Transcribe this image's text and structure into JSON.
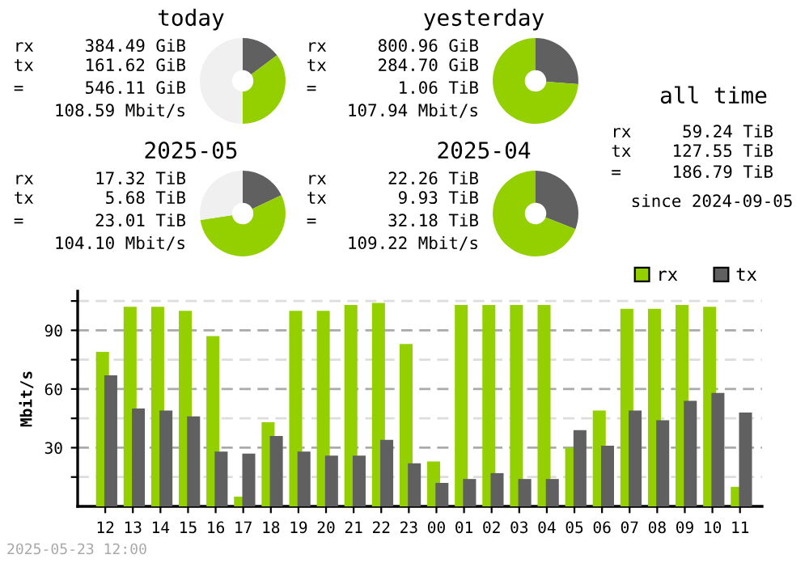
{
  "chart_data": [
    {
      "type": "donut",
      "title": "today",
      "categories": [
        null,
        null,
        null
      ],
      "values": [
        14.8,
        35.2,
        50.0
      ],
      "colors": [
        "#606060",
        "#94cf00",
        "#f0f0f0"
      ],
      "annotations": [
        "rx     384.49 GiB",
        "tx     161.62 GiB",
        "=      546.11 GiB",
        "108.59 Mbit/s"
      ]
    },
    {
      "type": "donut",
      "title": "yesterday",
      "categories": [
        null,
        null
      ],
      "values": [
        26.2,
        73.8
      ],
      "colors": [
        "#606060",
        "#94cf00"
      ],
      "annotations": [
        "rx     800.96 GiB",
        "tx     284.70 GiB",
        "=        1.06 TiB",
        "107.94 Mbit/s"
      ]
    },
    {
      "type": "donut",
      "title": "2025-05",
      "categories": [
        null,
        null,
        null
      ],
      "values": [
        17.9,
        54.7,
        27.4
      ],
      "colors": [
        "#606060",
        "#94cf00",
        "#f0f0f0"
      ],
      "annotations": [
        "rx      17.32 TiB",
        "tx       5.68 TiB",
        "=       23.01 TiB",
        "104.10 Mbit/s"
      ]
    },
    {
      "type": "donut",
      "title": "2025-04",
      "categories": [
        null,
        null
      ],
      "values": [
        30.9,
        69.1
      ],
      "colors": [
        "#606060",
        "#94cf00"
      ],
      "annotations": [
        "rx      22.26 TiB",
        "tx       9.93 TiB",
        "=       32.18 TiB",
        "109.22 Mbit/s"
      ]
    },
    {
      "type": "other",
      "title": "all time",
      "annotations": [
        "rx     59.24 TiB",
        "tx    127.55 TiB",
        "=     186.79 TiB",
        "since 2024-09-05"
      ]
    },
    {
      "type": "bar",
      "ylabel": "Mbit/s",
      "categories": [
        "12",
        "13",
        "14",
        "15",
        "16",
        "17",
        "18",
        "19",
        "20",
        "21",
        "22",
        "23",
        "00",
        "01",
        "02",
        "03",
        "04",
        "05",
        "06",
        "07",
        "08",
        "09",
        "10",
        "11"
      ],
      "series": [
        {
          "name": "rx",
          "color": "#94cf00",
          "values": [
            79,
            102,
            102,
            100,
            87,
            5,
            43,
            100,
            100,
            103,
            104,
            83,
            23,
            103,
            103,
            103,
            103,
            30,
            49,
            101,
            101,
            103,
            102,
            10
          ]
        },
        {
          "name": "tx",
          "color": "#606060",
          "values": [
            67,
            50,
            49,
            46,
            28,
            27,
            36,
            28,
            26,
            26,
            34,
            22,
            12,
            14,
            17,
            14,
            14,
            39,
            31,
            49,
            44,
            54,
            58,
            48
          ]
        }
      ],
      "ylim": [
        0,
        110
      ],
      "yticks": [
        {
          "value": 15,
          "label": null
        },
        30,
        {
          "value": 45,
          "label": null
        },
        60,
        {
          "value": 75,
          "label": null
        },
        90,
        {
          "value": 105,
          "label": null
        }
      ],
      "grid": "y",
      "legend": "top right",
      "annotations": [
        "2025-05-23 12:00"
      ]
    }
  ]
}
